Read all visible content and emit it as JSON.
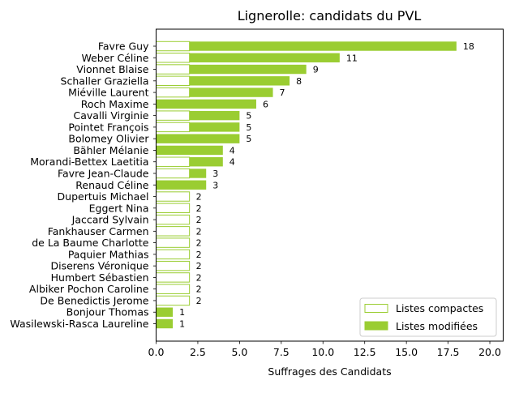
{
  "chart_data": {
    "type": "bar",
    "orientation": "horizontal",
    "stacked": true,
    "title": "Lignerolle: candidats du PVL",
    "xlabel": "Suffrages des Candidats",
    "ylabel": "",
    "xlim": [
      0,
      20.8
    ],
    "xticks": [
      "0.0",
      "2.5",
      "5.0",
      "7.5",
      "10.0",
      "12.5",
      "15.0",
      "17.5",
      "20.0"
    ],
    "grid": false,
    "legend_position": "bottom-right",
    "colors": {
      "accent": "#9acd32",
      "edge": "#9acd32",
      "background": "#ffffff"
    },
    "categories": [
      "Favre Guy",
      "Weber Céline",
      "Vionnet Blaise",
      "Schaller Graziella",
      "Miéville Laurent",
      "Roch Maxime",
      "Cavalli Virginie",
      "Pointet François",
      "Bolomey Olivier",
      "Bähler Mélanie",
      "Morandi-Bettex Laetitia",
      "Favre Jean-Claude",
      "Renaud Céline",
      "Dupertuis Michael",
      "Eggert Nina",
      "Jaccard Sylvain",
      "Fankhauser Carmen",
      "de La Baume Charlotte",
      "Paquier Mathias",
      "Diserens Véronique",
      "Humbert Sébastien",
      "Albiker Pochon Caroline",
      "De Benedictis Jerome",
      "Bonjour Thomas",
      "Wasilewski-Rasca Laureline"
    ],
    "series": [
      {
        "name": "Listes compactes",
        "style": "outline",
        "values": [
          2,
          2,
          2,
          2,
          2,
          0,
          2,
          2,
          0,
          0,
          2,
          2,
          0,
          2,
          2,
          2,
          2,
          2,
          2,
          2,
          2,
          2,
          2,
          0,
          0
        ]
      },
      {
        "name": "Listes modifiées",
        "style": "filled",
        "values": [
          16,
          9,
          7,
          6,
          5,
          6,
          3,
          3,
          5,
          4,
          2,
          1,
          3,
          0,
          0,
          0,
          0,
          0,
          0,
          0,
          0,
          0,
          0,
          1,
          1
        ]
      }
    ],
    "totals": [
      18,
      11,
      9,
      8,
      7,
      6,
      5,
      5,
      5,
      4,
      4,
      3,
      3,
      2,
      2,
      2,
      2,
      2,
      2,
      2,
      2,
      2,
      2,
      1,
      1
    ]
  }
}
